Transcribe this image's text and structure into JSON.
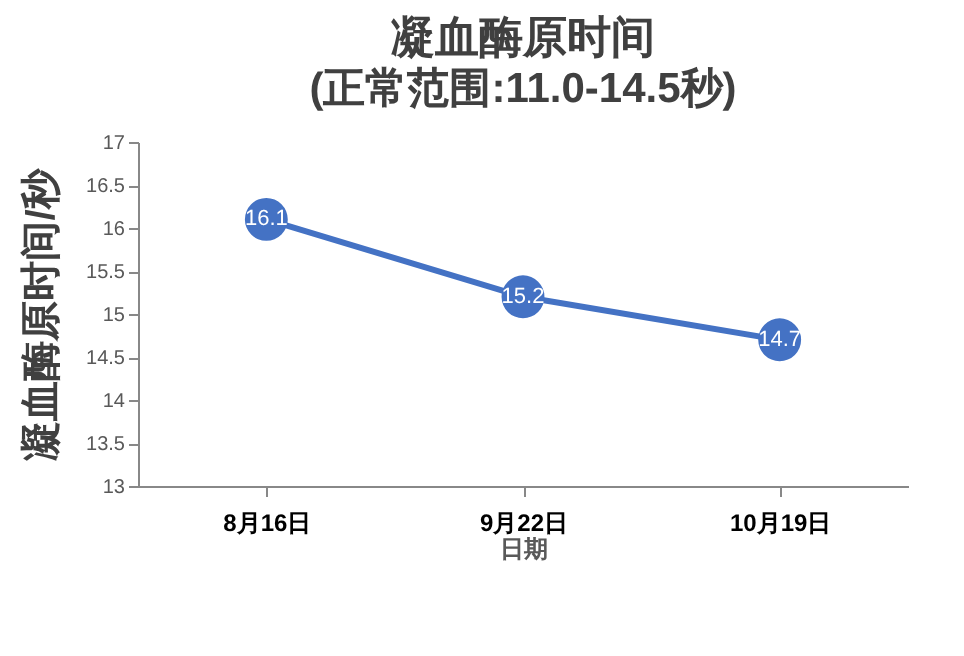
{
  "chart_data": {
    "type": "line",
    "title": "凝血酶原时间",
    "subtitle": "(正常范围:11.0-14.5秒)",
    "xlabel": "日期",
    "ylabel": "凝血酶原时间/秒",
    "categories": [
      "8月16日",
      "9月22日",
      "10月19日"
    ],
    "series": [
      {
        "color": "#4472c4",
        "values": [
          16.1,
          15.2,
          14.7
        ]
      }
    ],
    "ylim": [
      13,
      17
    ],
    "yticks": [
      13,
      13.5,
      14,
      14.5,
      15,
      15.5,
      16,
      16.5,
      17
    ],
    "data_labels": true,
    "marker": "circle",
    "line_style": "solid"
  }
}
